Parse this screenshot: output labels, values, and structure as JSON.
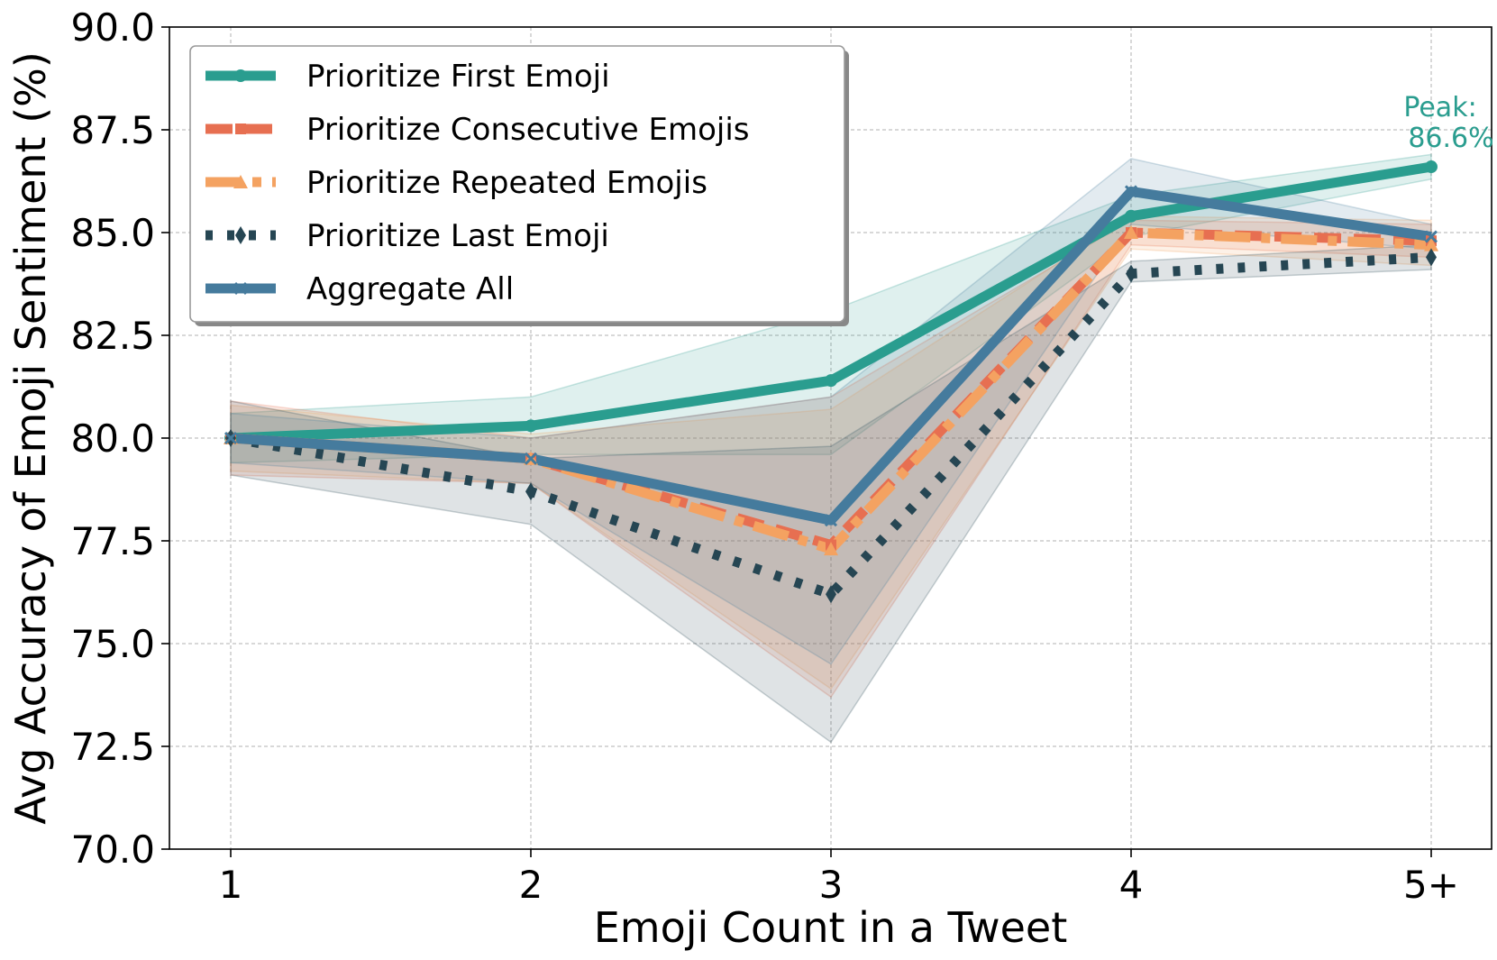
{
  "chart_data": {
    "type": "line",
    "title": "",
    "xlabel": "Emoji Count in a Tweet",
    "ylabel": "Avg Accuracy of Emoji Sentiment (%)",
    "categories": [
      "1",
      "2",
      "3",
      "4",
      "5+"
    ],
    "ylim": [
      70.0,
      90.0
    ],
    "yticks": [
      "70.0",
      "72.5",
      "75.0",
      "77.5",
      "80.0",
      "82.5",
      "85.0",
      "87.5",
      "90.0"
    ],
    "grid": true,
    "legend_position": "top-left",
    "series": [
      {
        "name": "Prioritize First Emoji",
        "color": "#2a9d8f",
        "style": "solid",
        "marker": "circle",
        "values": [
          80.0,
          80.3,
          81.4,
          85.4,
          86.6
        ],
        "band_low": [
          79.4,
          79.6,
          79.6,
          84.9,
          86.3
        ],
        "band_high": [
          80.6,
          81.0,
          83.1,
          85.9,
          86.9
        ]
      },
      {
        "name": "Prioritize Consecutive Emojis",
        "color": "#e76f51",
        "style": "dashed",
        "marker": "square",
        "values": [
          80.0,
          79.5,
          77.4,
          85.0,
          84.8
        ],
        "band_low": [
          79.1,
          78.9,
          73.7,
          84.7,
          84.4
        ],
        "band_high": [
          80.9,
          80.0,
          81.0,
          85.3,
          85.2
        ]
      },
      {
        "name": "Prioritize Repeated Emojis",
        "color": "#f4a261",
        "style": "dashdot",
        "marker": "triangle",
        "values": [
          80.0,
          79.5,
          77.3,
          85.0,
          84.7
        ],
        "band_low": [
          79.2,
          78.9,
          73.9,
          84.6,
          84.2
        ],
        "band_high": [
          80.8,
          80.1,
          80.7,
          85.4,
          85.3
        ]
      },
      {
        "name": "Prioritize Last Emoji",
        "color": "#264653",
        "style": "dotted",
        "marker": "diamond",
        "values": [
          80.0,
          78.7,
          76.2,
          84.0,
          84.4
        ],
        "band_low": [
          79.1,
          77.9,
          72.6,
          83.8,
          84.1
        ],
        "band_high": [
          80.9,
          79.5,
          79.8,
          84.3,
          84.7
        ]
      },
      {
        "name": "Aggregate All",
        "color": "#457b9d",
        "style": "solid",
        "marker": "x",
        "values": [
          80.0,
          79.5,
          78.0,
          86.0,
          84.9
        ],
        "band_low": [
          79.4,
          78.9,
          74.5,
          85.2,
          84.6
        ],
        "band_high": [
          80.6,
          80.0,
          81.0,
          86.8,
          85.2
        ]
      }
    ],
    "annotations": [
      {
        "text_line1": "Peak:",
        "text_line2": "86.6%",
        "series": "Prioritize First Emoji",
        "category": "5+"
      }
    ]
  }
}
